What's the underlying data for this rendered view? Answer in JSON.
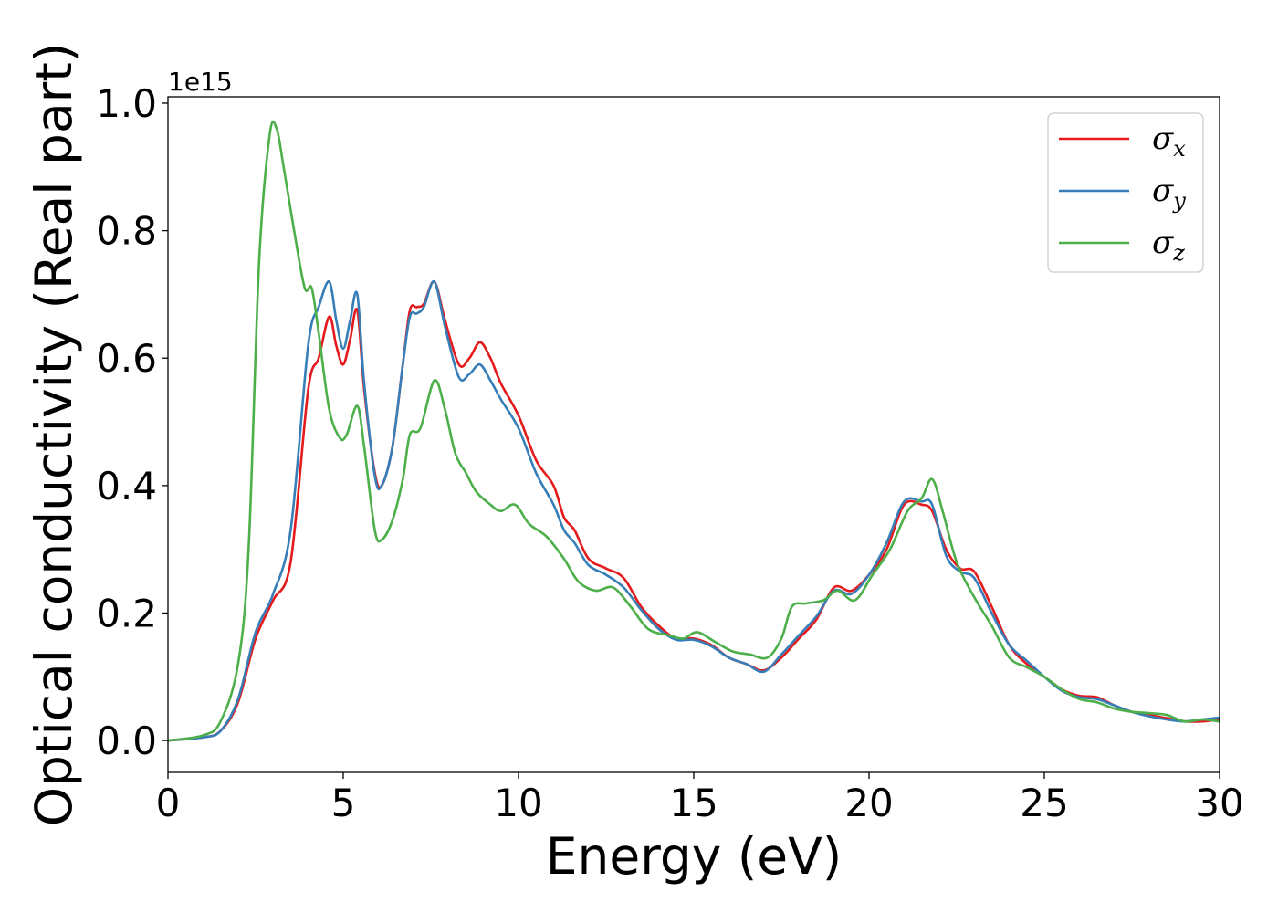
{
  "chart_data": {
    "type": "line",
    "xlabel": "Energy (eV)",
    "ylabel": "Optical conductivity (Real part)",
    "y_offset_label": "1e15",
    "xlim": [
      0,
      30
    ],
    "ylim": [
      -0.05,
      1.01
    ],
    "y_scale_factor": 1000000000000000.0,
    "x_ticks": [
      0,
      5,
      10,
      15,
      20,
      25,
      30
    ],
    "x_tick_labels": [
      "0",
      "5",
      "10",
      "15",
      "20",
      "25",
      "30"
    ],
    "y_ticks": [
      0.0,
      0.2,
      0.4,
      0.6,
      0.8,
      1.0
    ],
    "y_tick_labels": [
      "0.0",
      "0.2",
      "0.4",
      "0.6",
      "0.8",
      "1.0"
    ],
    "grid": false,
    "legend_position": "top-right",
    "series": [
      {
        "name": "σx",
        "legend_base": "σ",
        "legend_sub": "x",
        "color": "#e41a1c",
        "points": [
          [
            0,
            0
          ],
          [
            1,
            0.005
          ],
          [
            1.5,
            0.015
          ],
          [
            2,
            0.06
          ],
          [
            2.5,
            0.16
          ],
          [
            3,
            0.22
          ],
          [
            3.5,
            0.28
          ],
          [
            4,
            0.55
          ],
          [
            4.3,
            0.6
          ],
          [
            4.6,
            0.665
          ],
          [
            4.8,
            0.62
          ],
          [
            5.0,
            0.59
          ],
          [
            5.2,
            0.63
          ],
          [
            5.4,
            0.675
          ],
          [
            5.6,
            0.55
          ],
          [
            5.9,
            0.42
          ],
          [
            6.1,
            0.4
          ],
          [
            6.4,
            0.46
          ],
          [
            6.7,
            0.59
          ],
          [
            6.9,
            0.675
          ],
          [
            7.1,
            0.68
          ],
          [
            7.3,
            0.685
          ],
          [
            7.6,
            0.72
          ],
          [
            7.9,
            0.66
          ],
          [
            8.3,
            0.59
          ],
          [
            8.6,
            0.6
          ],
          [
            8.9,
            0.625
          ],
          [
            9.2,
            0.6
          ],
          [
            9.5,
            0.56
          ],
          [
            10,
            0.51
          ],
          [
            10.5,
            0.44
          ],
          [
            11,
            0.4
          ],
          [
            11.3,
            0.35
          ],
          [
            11.6,
            0.33
          ],
          [
            12,
            0.285
          ],
          [
            12.5,
            0.27
          ],
          [
            13,
            0.255
          ],
          [
            13.5,
            0.21
          ],
          [
            14,
            0.18
          ],
          [
            14.5,
            0.16
          ],
          [
            15,
            0.16
          ],
          [
            15.5,
            0.15
          ],
          [
            16,
            0.13
          ],
          [
            16.5,
            0.12
          ],
          [
            17,
            0.11
          ],
          [
            17.5,
            0.13
          ],
          [
            18,
            0.16
          ],
          [
            18.5,
            0.19
          ],
          [
            19,
            0.24
          ],
          [
            19.5,
            0.235
          ],
          [
            20,
            0.26
          ],
          [
            20.5,
            0.3
          ],
          [
            21,
            0.37
          ],
          [
            21.5,
            0.37
          ],
          [
            21.8,
            0.36
          ],
          [
            22.2,
            0.3
          ],
          [
            22.6,
            0.27
          ],
          [
            23,
            0.265
          ],
          [
            23.5,
            0.21
          ],
          [
            24,
            0.15
          ],
          [
            24.5,
            0.12
          ],
          [
            25,
            0.1
          ],
          [
            25.5,
            0.08
          ],
          [
            26,
            0.07
          ],
          [
            26.5,
            0.068
          ],
          [
            27,
            0.055
          ],
          [
            27.5,
            0.045
          ],
          [
            28,
            0.04
          ],
          [
            28.5,
            0.035
          ],
          [
            29,
            0.03
          ],
          [
            29.5,
            0.03
          ],
          [
            30,
            0.033
          ]
        ]
      },
      {
        "name": "σy",
        "legend_base": "σ",
        "legend_sub": "y",
        "color": "#377eb8",
        "points": [
          [
            0,
            0
          ],
          [
            1,
            0.005
          ],
          [
            1.5,
            0.015
          ],
          [
            2,
            0.065
          ],
          [
            2.5,
            0.17
          ],
          [
            3,
            0.23
          ],
          [
            3.5,
            0.33
          ],
          [
            4,
            0.62
          ],
          [
            4.3,
            0.68
          ],
          [
            4.6,
            0.72
          ],
          [
            4.8,
            0.66
          ],
          [
            5.0,
            0.615
          ],
          [
            5.2,
            0.66
          ],
          [
            5.4,
            0.7
          ],
          [
            5.6,
            0.56
          ],
          [
            5.9,
            0.415
          ],
          [
            6.1,
            0.4
          ],
          [
            6.4,
            0.46
          ],
          [
            6.7,
            0.59
          ],
          [
            6.9,
            0.665
          ],
          [
            7.1,
            0.67
          ],
          [
            7.3,
            0.68
          ],
          [
            7.6,
            0.72
          ],
          [
            7.9,
            0.65
          ],
          [
            8.3,
            0.57
          ],
          [
            8.6,
            0.575
          ],
          [
            8.9,
            0.59
          ],
          [
            9.2,
            0.565
          ],
          [
            9.5,
            0.535
          ],
          [
            10,
            0.49
          ],
          [
            10.5,
            0.42
          ],
          [
            11,
            0.37
          ],
          [
            11.3,
            0.33
          ],
          [
            11.6,
            0.31
          ],
          [
            12,
            0.275
          ],
          [
            12.5,
            0.26
          ],
          [
            13,
            0.24
          ],
          [
            13.5,
            0.205
          ],
          [
            14,
            0.175
          ],
          [
            14.5,
            0.158
          ],
          [
            15,
            0.158
          ],
          [
            15.5,
            0.148
          ],
          [
            16,
            0.13
          ],
          [
            16.5,
            0.12
          ],
          [
            17,
            0.108
          ],
          [
            17.5,
            0.135
          ],
          [
            18,
            0.165
          ],
          [
            18.5,
            0.195
          ],
          [
            19,
            0.235
          ],
          [
            19.5,
            0.23
          ],
          [
            20,
            0.26
          ],
          [
            20.5,
            0.31
          ],
          [
            21,
            0.375
          ],
          [
            21.5,
            0.375
          ],
          [
            21.8,
            0.37
          ],
          [
            22.2,
            0.29
          ],
          [
            22.6,
            0.265
          ],
          [
            23,
            0.255
          ],
          [
            23.5,
            0.2
          ],
          [
            24,
            0.15
          ],
          [
            24.5,
            0.125
          ],
          [
            25,
            0.1
          ],
          [
            25.5,
            0.078
          ],
          [
            26,
            0.068
          ],
          [
            26.5,
            0.065
          ],
          [
            27,
            0.055
          ],
          [
            27.5,
            0.045
          ],
          [
            28,
            0.038
          ],
          [
            28.5,
            0.033
          ],
          [
            29,
            0.03
          ],
          [
            29.5,
            0.033
          ],
          [
            30,
            0.036
          ]
        ]
      },
      {
        "name": "σz",
        "legend_base": "σ",
        "legend_sub": "z",
        "color": "#4daf4a",
        "points": [
          [
            0,
            0
          ],
          [
            1,
            0.008
          ],
          [
            1.5,
            0.03
          ],
          [
            2,
            0.12
          ],
          [
            2.3,
            0.3
          ],
          [
            2.6,
            0.75
          ],
          [
            2.9,
            0.95
          ],
          [
            3.1,
            0.96
          ],
          [
            3.3,
            0.9
          ],
          [
            3.6,
            0.8
          ],
          [
            3.9,
            0.71
          ],
          [
            4.1,
            0.71
          ],
          [
            4.3,
            0.64
          ],
          [
            4.6,
            0.52
          ],
          [
            4.9,
            0.475
          ],
          [
            5.1,
            0.48
          ],
          [
            5.4,
            0.525
          ],
          [
            5.6,
            0.46
          ],
          [
            5.9,
            0.33
          ],
          [
            6.1,
            0.315
          ],
          [
            6.4,
            0.345
          ],
          [
            6.7,
            0.41
          ],
          [
            6.9,
            0.48
          ],
          [
            7.2,
            0.49
          ],
          [
            7.6,
            0.565
          ],
          [
            7.9,
            0.52
          ],
          [
            8.2,
            0.45
          ],
          [
            8.5,
            0.42
          ],
          [
            8.8,
            0.39
          ],
          [
            9.2,
            0.37
          ],
          [
            9.5,
            0.36
          ],
          [
            9.9,
            0.37
          ],
          [
            10.3,
            0.34
          ],
          [
            10.8,
            0.32
          ],
          [
            11.3,
            0.285
          ],
          [
            11.7,
            0.25
          ],
          [
            12.2,
            0.235
          ],
          [
            12.7,
            0.24
          ],
          [
            13.2,
            0.21
          ],
          [
            13.7,
            0.175
          ],
          [
            14.3,
            0.165
          ],
          [
            14.7,
            0.16
          ],
          [
            15.1,
            0.17
          ],
          [
            15.6,
            0.155
          ],
          [
            16.1,
            0.14
          ],
          [
            16.6,
            0.135
          ],
          [
            17.1,
            0.13
          ],
          [
            17.5,
            0.16
          ],
          [
            17.8,
            0.21
          ],
          [
            18.2,
            0.215
          ],
          [
            18.7,
            0.22
          ],
          [
            19.1,
            0.235
          ],
          [
            19.6,
            0.22
          ],
          [
            20.1,
            0.26
          ],
          [
            20.6,
            0.3
          ],
          [
            21.1,
            0.36
          ],
          [
            21.5,
            0.38
          ],
          [
            21.8,
            0.41
          ],
          [
            22.1,
            0.36
          ],
          [
            22.5,
            0.28
          ],
          [
            23,
            0.225
          ],
          [
            23.5,
            0.18
          ],
          [
            24,
            0.13
          ],
          [
            24.5,
            0.115
          ],
          [
            25,
            0.1
          ],
          [
            25.5,
            0.08
          ],
          [
            26,
            0.065
          ],
          [
            26.5,
            0.06
          ],
          [
            27,
            0.05
          ],
          [
            27.5,
            0.045
          ],
          [
            28,
            0.043
          ],
          [
            28.5,
            0.04
          ],
          [
            29,
            0.03
          ],
          [
            29.5,
            0.033
          ],
          [
            30,
            0.03
          ]
        ]
      }
    ]
  }
}
